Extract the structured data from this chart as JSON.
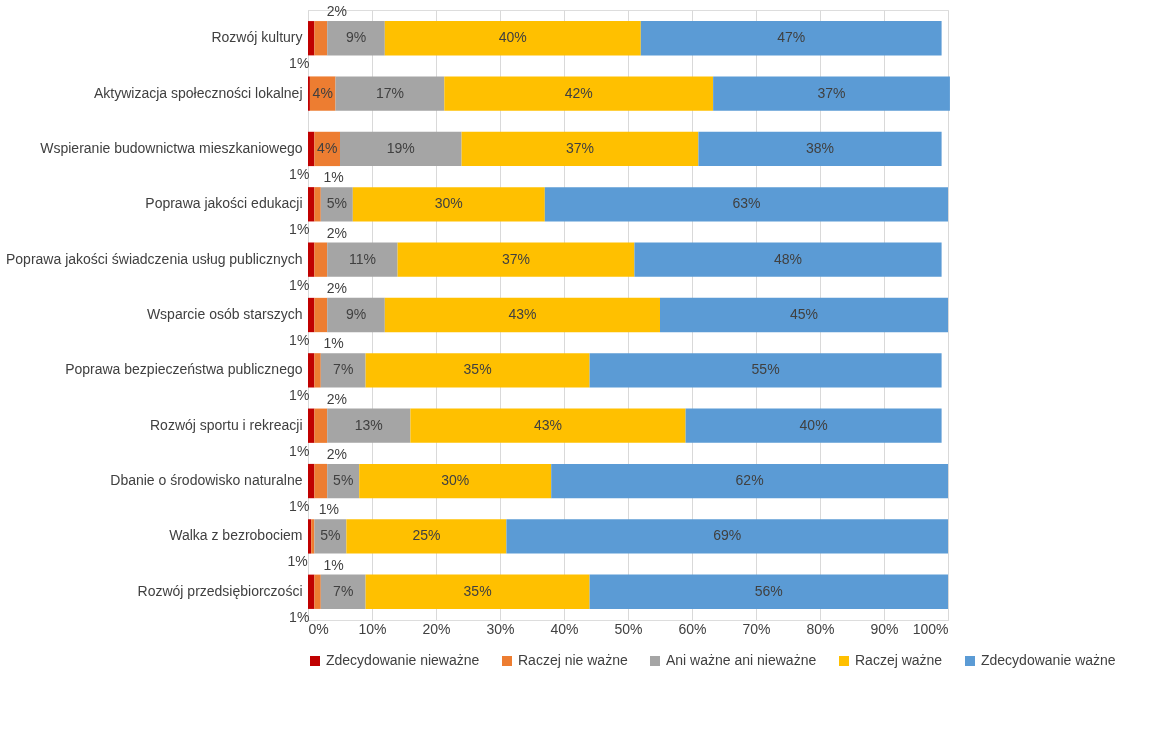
{
  "chart_data": {
    "type": "bar",
    "orientation": "horizontal",
    "stacked": true,
    "categories": [
      "Rozwój kultury",
      "Aktywizacja społeczności lokalnej",
      "Wspieranie budownictwa mieszkaniowego",
      "Poprawa jakości edukacji",
      "Poprawa jakości świadczenia usług publicznych",
      "Wsparcie osób starszych",
      "Poprawa bezpieczeństwa publicznego",
      "Rozwój sportu i rekreacji",
      "Dbanie o środowisko naturalne",
      "Walka z bezrobociem",
      "Rozwój przedsiębiorczości"
    ],
    "series": [
      {
        "name": "Zdecydowanie nieważne",
        "color": "#c00000",
        "values": [
          1,
          0.3,
          1,
          1,
          1,
          1,
          1,
          1,
          1,
          0.5,
          1
        ],
        "value_labels": [
          "1%",
          null,
          "1%",
          "1%",
          "1%",
          "1%",
          "1%",
          "1%",
          "1%",
          "1%",
          "1%"
        ]
      },
      {
        "name": "Raczej nie ważne",
        "color": "#ed7d31",
        "values": [
          2,
          4,
          4,
          1,
          2,
          2,
          1,
          2,
          2,
          0.5,
          1
        ],
        "value_labels": [
          "2%",
          "4%",
          "4%",
          "1%",
          "2%",
          "2%",
          "1%",
          "2%",
          "2%",
          "1%",
          "1%"
        ]
      },
      {
        "name": "Ani ważne ani nieważne",
        "color": "#a5a5a5",
        "values": [
          9,
          17,
          19,
          5,
          11,
          9,
          7,
          13,
          5,
          5,
          7
        ],
        "value_labels": [
          "9%",
          "17%",
          "19%",
          "5%",
          "11%",
          "9%",
          "7%",
          "13%",
          "5%",
          "5%",
          "7%"
        ]
      },
      {
        "name": "Raczej ważne",
        "color": "#ffc000",
        "values": [
          40,
          42,
          37,
          30,
          37,
          43,
          35,
          43,
          30,
          25,
          35
        ],
        "value_labels": [
          "40%",
          "42%",
          "37%",
          "30%",
          "37%",
          "43%",
          "35%",
          "43%",
          "30%",
          "25%",
          "35%"
        ]
      },
      {
        "name": "Zdecydowanie ważne",
        "color": "#5b9bd5",
        "values": [
          47,
          37,
          38,
          63,
          48,
          45,
          55,
          40,
          62,
          69,
          56
        ],
        "value_labels": [
          "47%",
          "37%",
          "38%",
          "63%",
          "48%",
          "45%",
          "55%",
          "40%",
          "62%",
          "69%",
          "56%"
        ]
      }
    ],
    "xlim": [
      0,
      100
    ],
    "xticks": [
      {
        "value": 0,
        "label": "0%"
      },
      {
        "value": 10,
        "label": "10%"
      },
      {
        "value": 20,
        "label": "20%"
      },
      {
        "value": 30,
        "label": "30%"
      },
      {
        "value": 40,
        "label": "40%"
      },
      {
        "value": 50,
        "label": "50%"
      },
      {
        "value": 60,
        "label": "60%"
      },
      {
        "value": 70,
        "label": "70%"
      },
      {
        "value": 80,
        "label": "80%"
      },
      {
        "value": 90,
        "label": "90%"
      },
      {
        "value": 100,
        "label": "100%"
      }
    ],
    "grid": "x",
    "legend": "bottom"
  }
}
